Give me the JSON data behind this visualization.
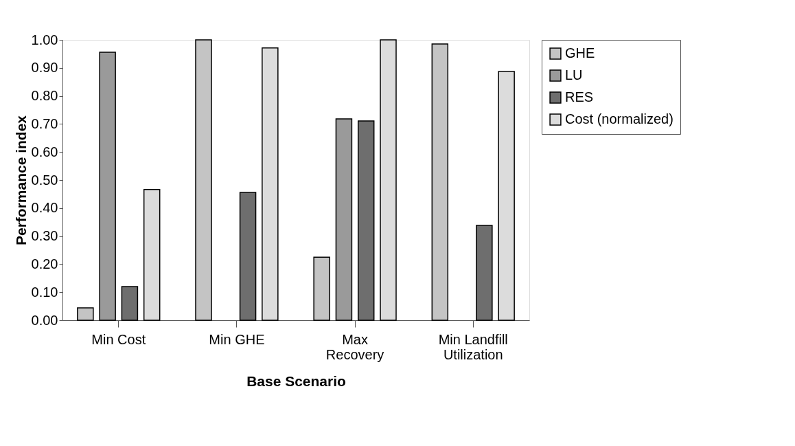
{
  "chart_data": {
    "type": "bar",
    "xlabel": "Base Scenario",
    "ylabel": "Performance index",
    "categories": [
      "Min Cost",
      "Min GHE",
      "Max\nRecovery",
      "Min Landfill\nUtilization"
    ],
    "series": [
      {
        "name": "GHE",
        "color": "#c4c4c4",
        "values": [
          0.044,
          1.0,
          0.225,
          0.985
        ]
      },
      {
        "name": "LU",
        "color": "#9a9a9a",
        "values": [
          0.956,
          null,
          0.718,
          null
        ]
      },
      {
        "name": "RES",
        "color": "#6e6e6e",
        "values": [
          0.12,
          0.456,
          0.711,
          0.338
        ]
      },
      {
        "name": "Cost (normalized)",
        "color": "#dcdcdc",
        "values": [
          0.466,
          0.971,
          1.0,
          0.887
        ]
      }
    ],
    "ylim": [
      0,
      1
    ],
    "yticks": [
      {
        "value": 0,
        "label": "0.00"
      },
      {
        "value": 0.1,
        "label": "0.10"
      },
      {
        "value": 0.2,
        "label": "0.20"
      },
      {
        "value": 0.3,
        "label": "0.30"
      },
      {
        "value": 0.4,
        "label": "0.40"
      },
      {
        "value": 0.5,
        "label": "0.50"
      },
      {
        "value": 0.6,
        "label": "0.60"
      },
      {
        "value": 0.7,
        "label": "0.70"
      },
      {
        "value": 0.8,
        "label": "0.80"
      },
      {
        "value": 0.9,
        "label": "0.90"
      },
      {
        "value": 1,
        "label": "1.00"
      }
    ],
    "legend": "right",
    "grid": false
  }
}
